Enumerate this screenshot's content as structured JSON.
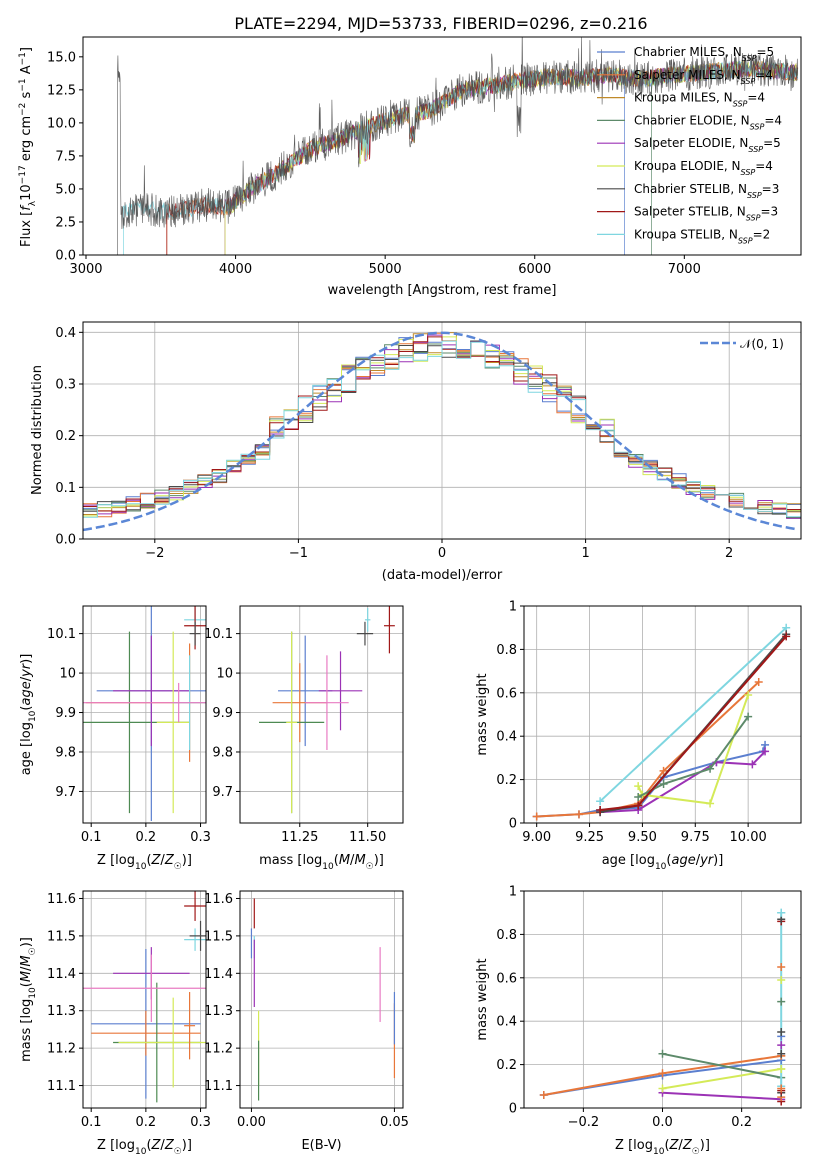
{
  "title": "PLATE=2294, MJD=53733, FIBERID=0296, z=0.216",
  "series": [
    {
      "name": "Chabrier MILES, N_SSP=5",
      "label_main": "Chabrier MILES, N",
      "label_sub": "SSP",
      "label_tail": "=5",
      "color": "#5b7fcf"
    },
    {
      "name": "Salpeter MILES, N_SSP=4",
      "label_main": "Salpeter MILES, N",
      "label_sub": "SSP",
      "label_tail": "=4",
      "color": "#e8773a"
    },
    {
      "name": "Kroupa MILES, N_SSP=4",
      "label_main": "Kroupa MILES, N",
      "label_sub": "SSP",
      "label_tail": "=4",
      "color": "#c08a2a"
    },
    {
      "name": "Chabrier ELODIE, N_SSP=4",
      "label_main": "Chabrier ELODIE, N",
      "label_sub": "SSP",
      "label_tail": "=4",
      "color": "#5d8a6a"
    },
    {
      "name": "Salpeter ELODIE, N_SSP=5",
      "label_main": "Salpeter ELODIE, N",
      "label_sub": "SSP",
      "label_tail": "=5",
      "color": "#9b32b5"
    },
    {
      "name": "Kroupa ELODIE, N_SSP=4",
      "label_main": "Kroupa ELODIE, N",
      "label_sub": "SSP",
      "label_tail": "=4",
      "color": "#d4ea58"
    },
    {
      "name": "Chabrier STELIB, N_SSP=3",
      "label_main": "Chabrier STELIB, N",
      "label_sub": "SSP",
      "label_tail": "=3",
      "color": "#4a4a4a"
    },
    {
      "name": "Salpeter STELIB, N_SSP=3",
      "label_main": "Salpeter STELIB, N",
      "label_sub": "SSP",
      "label_tail": "=3",
      "color": "#a01818"
    },
    {
      "name": "Kroupa STELIB, N_SSP=2",
      "label_main": "Kroupa STELIB, N",
      "label_sub": "SSP",
      "label_tail": "=2",
      "color": "#7fd6e0"
    }
  ],
  "chart_data": [
    {
      "id": "spectrum",
      "type": "line",
      "xlabel": "wavelength [Angstrom, rest frame]",
      "ylabel": "Flux [f_λ 10^-17 erg cm^-2 s^-1 A^-1]",
      "ylabel_parts": {
        "a": "Flux [",
        "b": "f",
        "c": "λ",
        "d": "10",
        "e": "−17",
        "f": " erg cm",
        "g": "−2",
        "h": " s",
        "i": "−1",
        "j": " A",
        "k": "−1",
        "l": "]"
      },
      "xlim": [
        2980,
        7780
      ],
      "ylim": [
        0,
        16.5
      ],
      "xticks": [
        3000,
        4000,
        5000,
        6000,
        7000
      ],
      "yticks": [
        0.0,
        2.5,
        5.0,
        7.5,
        10.0,
        12.5,
        15.0
      ],
      "ytick_labels": [
        "0.0",
        "2.5",
        "5.0",
        "7.5",
        "10.0",
        "12.5",
        "15.0"
      ],
      "legend": "right",
      "continuum": [
        [
          3230,
          3.2
        ],
        [
          3400,
          3.4
        ],
        [
          3600,
          3.3
        ],
        [
          3800,
          3.8
        ],
        [
          3950,
          3.6
        ],
        [
          4100,
          5.0
        ],
        [
          4300,
          6.4
        ],
        [
          4500,
          8.0
        ],
        [
          4700,
          8.8
        ],
        [
          4900,
          9.8
        ],
        [
          5100,
          10.5
        ],
        [
          5300,
          10.9
        ],
        [
          5500,
          12.4
        ],
        [
          5700,
          12.8
        ],
        [
          5900,
          13.2
        ],
        [
          6100,
          13.5
        ],
        [
          6300,
          13.4
        ],
        [
          6500,
          13.6
        ],
        [
          6700,
          13.3
        ],
        [
          6900,
          13.6
        ],
        [
          7100,
          13.8
        ],
        [
          7300,
          14.0
        ],
        [
          7400,
          14.1
        ],
        [
          7760,
          13.8
        ]
      ],
      "series_start_wavelength": [
        6600,
        3540,
        3930,
        6780,
        3930,
        3930,
        3210,
        3540,
        3250
      ]
    },
    {
      "id": "residuals",
      "type": "line",
      "xlabel": "(data-model)/error",
      "ylabel": "Normed distribution",
      "xlim": [
        -2.5,
        2.5
      ],
      "ylim": [
        0,
        0.42
      ],
      "xticks": [
        -2,
        -1,
        0,
        1,
        2
      ],
      "xtick_labels": [
        "−2",
        "−1",
        "0",
        "1",
        "2"
      ],
      "yticks": [
        0.0,
        0.1,
        0.2,
        0.3,
        0.4
      ],
      "ytick_labels": [
        "0.0",
        "0.1",
        "0.2",
        "0.3",
        "0.4"
      ],
      "grid": true,
      "legend": "top-right",
      "reference_label": "𝒩(0, 1)",
      "reference_color": "#5b87d6",
      "bin_width": 0.1
    },
    {
      "id": "age-vs-Z",
      "type": "scatter",
      "xlabel": "Z [log10(Z/Z☉)]",
      "ylabel": "age  [log10(age/yr)]",
      "xlim": [
        0.085,
        0.31
      ],
      "ylim": [
        9.62,
        10.17
      ],
      "xticks": [
        0.1,
        0.2,
        0.3
      ],
      "yticks": [
        9.7,
        9.8,
        9.9,
        10.0,
        10.1
      ],
      "grid": true,
      "points": [
        {
          "x": 0.21,
          "y": 9.955,
          "xerr": 0.1,
          "yerr": 0.33,
          "color": "#5b7fcf"
        },
        {
          "x": 0.28,
          "y": 9.925,
          "xerr": 0.19,
          "yerr": 0.15,
          "color": "#e8773a"
        },
        {
          "x": 0.17,
          "y": 9.875,
          "xerr": 0.11,
          "yerr": 0.23,
          "color": "#4e8a52"
        },
        {
          "x": 0.21,
          "y": 9.955,
          "xerr": 0.07,
          "yerr": 0.14,
          "color": "#9b32b5"
        },
        {
          "x": 0.25,
          "y": 9.875,
          "xerr": 0.03,
          "yerr": 0.23,
          "color": "#d4ea58"
        },
        {
          "x": 0.28,
          "y": 9.925,
          "xerr": 0.03,
          "yerr": 0.12,
          "color": "#7fd6e0"
        },
        {
          "x": 0.26,
          "y": 9.925,
          "xerr": 0.21,
          "yerr": 0.05,
          "color": "#e87bc3"
        },
        {
          "x": 0.29,
          "y": 10.135,
          "xerr": 0.02,
          "yerr": 0.03,
          "color": "#7fd6e0"
        },
        {
          "x": 0.29,
          "y": 10.12,
          "xerr": 0.02,
          "yerr": 0.06,
          "color": "#a01818"
        },
        {
          "x": 0.29,
          "y": 10.1,
          "xerr": 0.01,
          "yerr": 0.03,
          "color": "#4a4a4a"
        }
      ]
    },
    {
      "id": "age-vs-mass",
      "type": "scatter",
      "xlabel": "mass [log10(M/M☉)]",
      "xlim": [
        11.03,
        11.63
      ],
      "ylim": [
        9.62,
        10.17
      ],
      "xticks": [
        11.25,
        11.5
      ],
      "xtick_labels": [
        "11.25",
        "11.50"
      ],
      "yticks": [
        9.7,
        9.8,
        9.9,
        10.0,
        10.1
      ],
      "grid": true,
      "points": [
        {
          "x": 11.27,
          "y": 9.955,
          "xerr": 0.1,
          "yerr": 0.14,
          "color": "#5b7fcf"
        },
        {
          "x": 11.25,
          "y": 9.925,
          "xerr": 0.1,
          "yerr": 0.1,
          "color": "#e8773a"
        },
        {
          "x": 11.22,
          "y": 9.875,
          "xerr": 0.12,
          "yerr": 0.23,
          "color": "#4e8a52"
        },
        {
          "x": 11.4,
          "y": 9.955,
          "xerr": 0.08,
          "yerr": 0.1,
          "color": "#9b32b5"
        },
        {
          "x": 11.22,
          "y": 9.875,
          "xerr": 0.02,
          "yerr": 0.23,
          "color": "#d4ea58"
        },
        {
          "x": 11.35,
          "y": 9.925,
          "xerr": 0.08,
          "yerr": 0.12,
          "color": "#e87bc3"
        },
        {
          "x": 11.5,
          "y": 10.135,
          "xerr": 0.01,
          "yerr": 0.03,
          "color": "#7fd6e0"
        },
        {
          "x": 11.58,
          "y": 10.12,
          "xerr": 0.02,
          "yerr": 0.07,
          "color": "#a01818"
        },
        {
          "x": 11.49,
          "y": 10.1,
          "xerr": 0.03,
          "yerr": 0.03,
          "color": "#4a4a4a"
        }
      ]
    },
    {
      "id": "massweight-vs-age",
      "type": "line",
      "xlabel": "age  [log10(age/yr)]",
      "ylabel": "mass weight",
      "xlim": [
        8.94,
        10.25
      ],
      "ylim": [
        0,
        1
      ],
      "xticks": [
        9.0,
        9.25,
        9.5,
        9.75,
        10.0
      ],
      "xtick_labels": [
        "9.00",
        "9.25",
        "9.50",
        "9.75",
        "10.00"
      ],
      "yticks": [
        0.0,
        0.2,
        0.4,
        0.6,
        0.8,
        1.0
      ],
      "grid": true,
      "series": [
        {
          "color": "#7fd6e0",
          "x": [
            9.3,
            10.18
          ],
          "y": [
            0.1,
            0.9
          ]
        },
        {
          "color": "#5b7fcf",
          "x": [
            9.0,
            9.2,
            9.3,
            9.48,
            9.6,
            9.85,
            10.07,
            10.08
          ],
          "y": [
            0.03,
            0.04,
            0.06,
            0.07,
            0.21,
            0.28,
            0.33,
            0.36
          ]
        },
        {
          "color": "#e8773a",
          "x": [
            9.0,
            9.2,
            9.3,
            9.48,
            9.6,
            10.05
          ],
          "y": [
            0.03,
            0.04,
            0.05,
            0.09,
            0.24,
            0.65
          ]
        },
        {
          "color": "#9b32b5",
          "x": [
            9.3,
            9.48,
            9.85,
            10.02,
            10.08
          ],
          "y": [
            0.05,
            0.06,
            0.28,
            0.27,
            0.33
          ]
        },
        {
          "color": "#d4ea58",
          "x": [
            9.48,
            9.5,
            9.82,
            10.0
          ],
          "y": [
            0.17,
            0.13,
            0.09,
            0.59
          ]
        },
        {
          "color": "#5d8a6a",
          "x": [
            9.48,
            9.6,
            9.82,
            10.0
          ],
          "y": [
            0.12,
            0.18,
            0.25,
            0.49
          ]
        },
        {
          "color": "#4a4a4a",
          "x": [
            9.3,
            9.48,
            10.18
          ],
          "y": [
            0.05,
            0.08,
            0.87
          ]
        },
        {
          "color": "#a01818",
          "x": [
            9.3,
            9.48,
            10.18
          ],
          "y": [
            0.06,
            0.08,
            0.86
          ]
        }
      ]
    },
    {
      "id": "mass-vs-Z",
      "type": "scatter",
      "xlabel": "Z [log10(Z/Z☉)]",
      "ylabel": "mass [log10(M/M☉)]",
      "xlim": [
        0.085,
        0.31
      ],
      "ylim": [
        11.04,
        11.62
      ],
      "xticks": [
        0.1,
        0.2,
        0.3
      ],
      "yticks": [
        11.1,
        11.2,
        11.3,
        11.4,
        11.5,
        11.6
      ],
      "grid": true,
      "points": [
        {
          "x": 0.2,
          "y": 11.265,
          "xerr": 0.1,
          "yerr": 0.2,
          "color": "#5b7fcf"
        },
        {
          "x": 0.2,
          "y": 11.24,
          "xerr": 0.1,
          "yerr": 0.06,
          "color": "#e8773a"
        },
        {
          "x": 0.22,
          "y": 11.215,
          "xerr": 0.08,
          "yerr": 0.16,
          "color": "#4e8a52"
        },
        {
          "x": 0.21,
          "y": 11.4,
          "xerr": 0.07,
          "yerr": 0.07,
          "color": "#9b32b5"
        },
        {
          "x": 0.25,
          "y": 11.215,
          "xerr": 0.1,
          "yerr": 0.12,
          "color": "#d4ea58"
        },
        {
          "x": 0.21,
          "y": 11.36,
          "xerr": 0.13,
          "yerr": 0.09,
          "color": "#e87bc3"
        },
        {
          "x": 0.28,
          "y": 11.26,
          "xerr": 0.01,
          "yerr": 0.09,
          "color": "#e8773a"
        },
        {
          "x": 0.29,
          "y": 11.49,
          "xerr": 0.02,
          "yerr": 0.03,
          "color": "#7fd6e0"
        },
        {
          "x": 0.29,
          "y": 11.58,
          "xerr": 0.02,
          "yerr": 0.04,
          "color": "#a01818"
        },
        {
          "x": 0.3,
          "y": 11.5,
          "xerr": 0.02,
          "yerr": 0.04,
          "color": "#4a4a4a"
        }
      ]
    },
    {
      "id": "mass-vs-EBV",
      "type": "scatter",
      "xlabel": "E(B-V)",
      "xlim": [
        -0.004,
        0.053
      ],
      "ylim": [
        11.04,
        11.62
      ],
      "xticks": [
        0.0,
        0.05
      ],
      "xtick_labels": [
        "0.00",
        "0.05"
      ],
      "yticks": [
        11.1,
        11.2,
        11.3,
        11.4,
        11.5,
        11.6
      ],
      "grid": true,
      "points": [
        {
          "x": 0.0,
          "y": 11.48,
          "xerr": 0,
          "yerr": 0.04,
          "color": "#5b7fcf"
        },
        {
          "x": 0.001,
          "y": 11.47,
          "xerr": 0,
          "yerr": 0.03,
          "color": "#7fd6e0"
        },
        {
          "x": 0.001,
          "y": 11.56,
          "xerr": 0,
          "yerr": 0.04,
          "color": "#a01818"
        },
        {
          "x": 0.001,
          "y": 11.4,
          "xerr": 0,
          "yerr": 0.09,
          "color": "#9b32b5"
        },
        {
          "x": 0.0025,
          "y": 11.2,
          "xerr": 0,
          "yerr": 0.1,
          "color": "#d4ea58"
        },
        {
          "x": 0.0025,
          "y": 11.14,
          "xerr": 0,
          "yerr": 0.08,
          "color": "#4e8a52"
        },
        {
          "x": 0.045,
          "y": 11.37,
          "xerr": 0,
          "yerr": 0.1,
          "color": "#e87bc3"
        },
        {
          "x": 0.05,
          "y": 11.22,
          "xerr": 0,
          "yerr": 0.1,
          "color": "#e8773a"
        },
        {
          "x": 0.05,
          "y": 11.28,
          "xerr": 0,
          "yerr": 0.07,
          "color": "#5b7fcf"
        }
      ]
    },
    {
      "id": "massweight-vs-Z",
      "type": "line",
      "xlabel": "Z [log10(Z/Z☉)]",
      "ylabel": "mass weight",
      "xlim": [
        -0.35,
        0.35
      ],
      "ylim": [
        0,
        1
      ],
      "xticks": [
        -0.2,
        0.0,
        0.2
      ],
      "xtick_labels": [
        "−0.2",
        "0.0",
        "0.2"
      ],
      "yticks": [
        0.0,
        0.2,
        0.4,
        0.6,
        0.8,
        1.0
      ],
      "grid": true,
      "series": [
        {
          "color": "#5b7fcf",
          "x": [
            -0.3,
            0.0,
            0.3
          ],
          "y": [
            0.06,
            0.15,
            0.22
          ]
        },
        {
          "color": "#e8773a",
          "x": [
            -0.3,
            0.0,
            0.3
          ],
          "y": [
            0.06,
            0.16,
            0.24
          ]
        },
        {
          "color": "#9b32b5",
          "x": [
            0.0,
            0.3
          ],
          "y": [
            0.07,
            0.04
          ]
        },
        {
          "color": "#d4ea58",
          "x": [
            0.0,
            0.3
          ],
          "y": [
            0.09,
            0.18
          ]
        },
        {
          "color": "#5d8a6a",
          "x": [
            0.0,
            0.3
          ],
          "y": [
            0.25,
            0.14
          ]
        },
        {
          "color": "#7fd6e0",
          "x": [
            0.3,
            0.3
          ],
          "y": [
            0.1,
            0.9
          ]
        }
      ],
      "column_ticks": {
        "x": 0.3,
        "y": [
          0.03,
          0.05,
          0.07,
          0.08,
          0.09,
          0.18,
          0.22,
          0.24,
          0.25,
          0.29,
          0.33,
          0.35,
          0.49,
          0.59,
          0.65,
          0.86,
          0.87,
          0.9
        ]
      },
      "column_tick_colors": [
        "#a01818",
        "#e8773a",
        "#4a4a4a",
        "#a01818",
        "#e8773a",
        "#d4ea58",
        "#5b7fcf",
        "#e8773a",
        "#4a4a4a",
        "#9b32b5",
        "#5b7fcf",
        "#4a4a4a",
        "#5d8a6a",
        "#d4ea58",
        "#e8773a",
        "#a01818",
        "#4a4a4a",
        "#7fd6e0"
      ]
    }
  ]
}
